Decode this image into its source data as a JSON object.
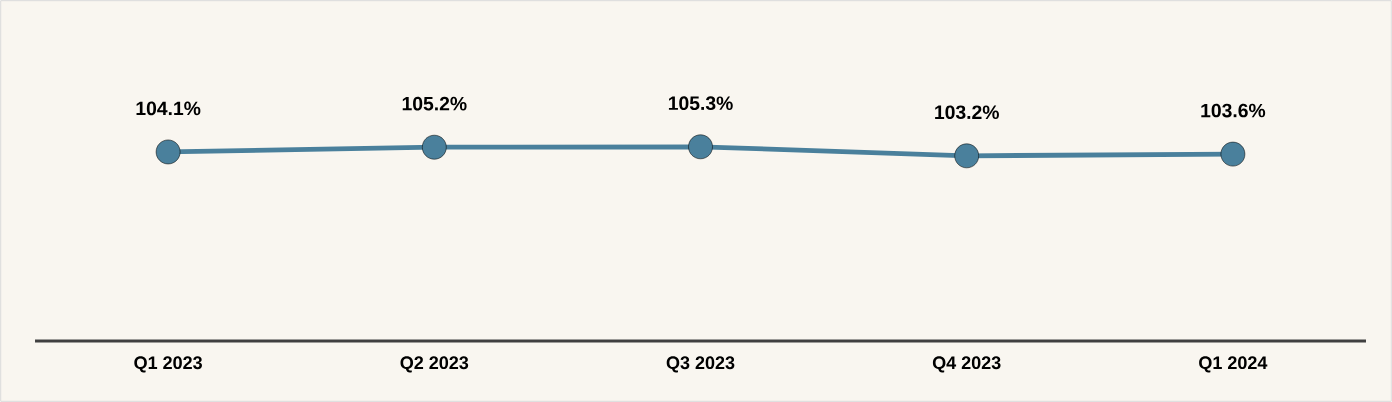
{
  "chart_data": {
    "type": "line",
    "categories": [
      "Q1 2023",
      "Q2 2023",
      "Q3 2023",
      "Q4 2023",
      "Q1 2024"
    ],
    "series": [
      {
        "color": "#4a809c",
        "values": [
          104.1,
          105.2,
          105.3,
          103.2,
          103.6
        ],
        "value_labels": [
          "104.1%",
          "105.2%",
          "105.3%",
          "103.2%",
          "103.6%"
        ]
      }
    ],
    "tick_labels": "x",
    "marker": "circle",
    "line_style": "solid"
  }
}
